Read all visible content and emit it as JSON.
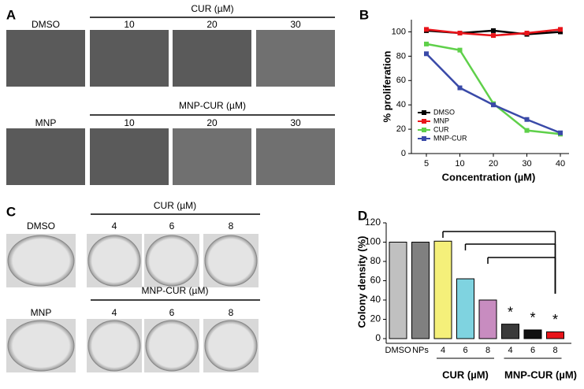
{
  "panel_a": {
    "label": "A",
    "rows": [
      {
        "control": "DMSO",
        "group": "CUR (µM)",
        "concentrations": [
          "10",
          "20",
          "30"
        ]
      },
      {
        "control": "MNP",
        "group": "MNP-CUR (µM)",
        "concentrations": [
          "10",
          "20",
          "30"
        ]
      }
    ]
  },
  "panel_c": {
    "label": "C",
    "rows": [
      {
        "control": "DMSO",
        "group": "CUR (µM)",
        "concentrations": [
          "4",
          "6",
          "8"
        ]
      },
      {
        "control": "MNP",
        "group": "MNP-CUR (µM)",
        "concentrations": [
          "4",
          "6",
          "8"
        ]
      }
    ]
  },
  "chart_data": [
    {
      "type": "line",
      "label": "B",
      "xlabel": "Concentration (µM)",
      "ylabel": "% proliferation",
      "categories": [
        "5",
        "10",
        "20",
        "30",
        "40"
      ],
      "series": [
        {
          "name": "DMSO",
          "color": "#000000",
          "values": [
            101,
            99,
            101,
            98,
            100
          ]
        },
        {
          "name": "MNP",
          "color": "#e8141a",
          "values": [
            102,
            99,
            97,
            99,
            102
          ]
        },
        {
          "name": "CUR",
          "color": "#5fd04a",
          "values": [
            90,
            85,
            41,
            19,
            16
          ]
        },
        {
          "name": "MNP-CUR",
          "color": "#3a4aa8",
          "values": [
            82,
            54,
            40,
            28,
            17
          ]
        }
      ],
      "ylim": [
        0,
        110
      ],
      "yticks": [
        0,
        20,
        40,
        60,
        80,
        100
      ],
      "legend": "lower left"
    },
    {
      "type": "bar",
      "label": "D",
      "ylabel": "Colony density (%)",
      "categories": [
        "DMSO",
        "NPs",
        "4",
        "6",
        "8",
        "4",
        "6",
        "8"
      ],
      "values": [
        100,
        100,
        101,
        62,
        40,
        15,
        9,
        7
      ],
      "colors": [
        "#c0c0c0",
        "#808080",
        "#f5f07a",
        "#7fd3e0",
        "#c88cc0",
        "#3a3a3a",
        "#111111",
        "#e8141a"
      ],
      "significance": [
        null,
        null,
        null,
        null,
        null,
        "*",
        "*",
        "*"
      ],
      "group_labels": [
        "CUR (µM)",
        "MNP-CUR (µM)"
      ],
      "ylim": [
        0,
        120
      ],
      "yticks": [
        0,
        20,
        40,
        60,
        80,
        100,
        120
      ]
    }
  ]
}
